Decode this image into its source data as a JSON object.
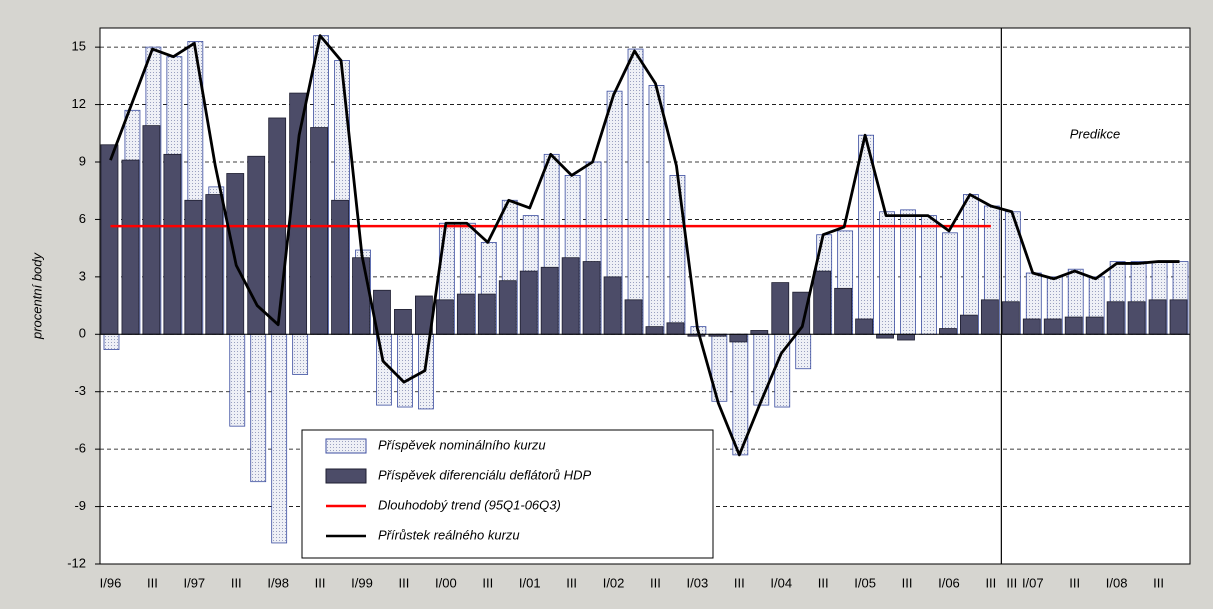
{
  "chart_data": {
    "type": "bar",
    "y_label": "procentní body",
    "annotation": "Predikce",
    "categories": [
      "I/96",
      null,
      "III",
      null,
      "I/97",
      null,
      "III",
      null,
      "I/98",
      null,
      "III",
      null,
      "I/99",
      null,
      "III",
      null,
      "I/00",
      null,
      "III",
      null,
      "I/01",
      null,
      "III",
      null,
      "I/02",
      null,
      "III",
      null,
      "I/03",
      null,
      "III",
      null,
      "I/04",
      null,
      "III",
      null,
      "I/05",
      null,
      "III",
      null,
      "I/06",
      null,
      "III",
      "III",
      "I/07",
      null,
      "III",
      null,
      "I/08",
      null,
      "III",
      null
    ],
    "ylim": [
      -12,
      16
    ],
    "yticks": [
      -12,
      -9,
      -6,
      -3,
      0,
      3,
      6,
      9,
      12,
      15
    ],
    "grid": true,
    "series": [
      {
        "name": "Příspěvek nominálního kurzu",
        "type": "bar",
        "color": "#3c4ea0",
        "fill": "#e4e6f0",
        "values": [
          -0.8,
          11.7,
          15.0,
          14.5,
          15.3,
          7.7,
          -4.8,
          -7.7,
          -10.9,
          -2.1,
          15.6,
          14.3,
          4.4,
          -3.7,
          -3.8,
          -3.9,
          5.8,
          5.8,
          4.8,
          7.0,
          6.2,
          9.4,
          8.3,
          9.0,
          12.7,
          14.9,
          13.0,
          8.3,
          0.4,
          -3.5,
          -6.3,
          -3.7,
          -3.8,
          -1.8,
          5.2,
          5.4,
          10.4,
          6.4,
          6.5,
          6.2,
          5.3,
          7.3,
          6.7,
          6.4,
          3.2,
          3.0,
          3.4,
          3.0,
          3.8,
          3.8,
          3.8,
          3.8
        ]
      },
      {
        "name": "Příspěvek diferenciálu deflátorů HDP",
        "type": "bar",
        "color": "#1e1e30",
        "fill": "#4c4c68",
        "values": [
          9.9,
          9.1,
          10.9,
          9.4,
          7.0,
          7.3,
          8.4,
          9.3,
          11.3,
          12.6,
          10.8,
          7.0,
          4.0,
          2.3,
          1.3,
          2.0,
          1.8,
          2.1,
          2.1,
          2.8,
          3.3,
          3.5,
          4.0,
          3.8,
          3.0,
          1.8,
          0.4,
          0.6,
          -0.1,
          -0.1,
          -0.4,
          0.2,
          2.7,
          2.2,
          3.3,
          2.4,
          0.8,
          -0.2,
          -0.3,
          0.0,
          0.3,
          1.0,
          1.8,
          1.7,
          0.8,
          0.8,
          0.9,
          0.9,
          1.7,
          1.7,
          1.8,
          1.8
        ]
      },
      {
        "name": "Dlouhodobý trend (95Q1-06Q3)",
        "type": "line",
        "color": "#ff0000",
        "values": [
          5.65,
          5.65,
          5.65,
          5.65,
          5.65,
          5.65,
          5.65,
          5.65,
          5.65,
          5.65,
          5.65,
          5.65,
          5.65,
          5.65,
          5.65,
          5.65,
          5.65,
          5.65,
          5.65,
          5.65,
          5.65,
          5.65,
          5.65,
          5.65,
          5.65,
          5.65,
          5.65,
          5.65,
          5.65,
          5.65,
          5.65,
          5.65,
          5.65,
          5.65,
          5.65,
          5.65,
          5.65,
          5.65,
          5.65,
          5.65,
          5.65,
          5.65,
          5.65,
          null,
          null,
          null,
          null,
          null,
          null,
          null,
          null,
          null
        ]
      },
      {
        "name": "Přírůstek reálného kurzu",
        "type": "line",
        "color": "#000000",
        "values": [
          9.1,
          12.0,
          14.9,
          14.5,
          15.2,
          8.8,
          3.6,
          1.5,
          0.5,
          10.4,
          15.6,
          14.3,
          4.1,
          -1.4,
          -2.5,
          -1.9,
          5.8,
          5.8,
          4.8,
          7.0,
          6.6,
          9.4,
          8.3,
          9.0,
          12.5,
          14.8,
          13.1,
          8.8,
          0.3,
          -3.6,
          -6.3,
          -3.6,
          -1.0,
          0.4,
          5.2,
          5.6,
          10.4,
          6.2,
          6.2,
          6.2,
          5.4,
          7.3,
          6.7,
          6.4,
          3.2,
          2.9,
          3.3,
          2.9,
          3.7,
          3.7,
          3.8,
          3.8
        ]
      }
    ]
  }
}
